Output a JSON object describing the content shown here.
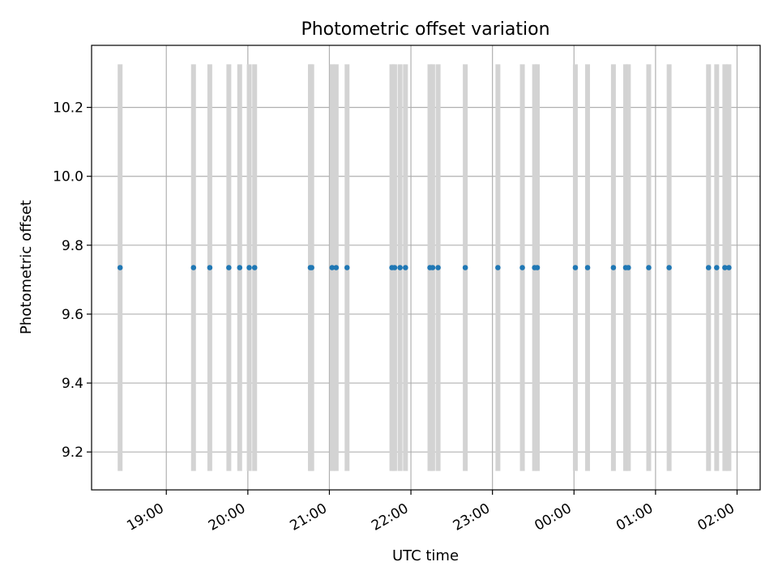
{
  "chart_data": {
    "type": "scatter",
    "title": "Photometric offset variation",
    "xlabel": "UTC time",
    "ylabel": "Photometric offset",
    "grid": true,
    "colors": {
      "point": "#1f77b4",
      "errorbar": "#d3d3d3"
    },
    "xlim": [
      "18:05",
      "02:17"
    ],
    "ylim": [
      9.09,
      10.38
    ],
    "x_ticks": [
      "19:00",
      "20:00",
      "21:00",
      "22:00",
      "23:00",
      "00:00",
      "01:00",
      "02:00"
    ],
    "y_ticks": [
      "9.2",
      "9.4",
      "9.6",
      "9.8",
      "10.0",
      "10.2"
    ],
    "error_range": [
      9.145,
      10.325
    ],
    "series": [
      {
        "x": [
          "18:26",
          "19:20",
          "19:32",
          "19:46",
          "19:54",
          "20:01",
          "20:05",
          "20:46",
          "20:47",
          "21:02",
          "21:05",
          "21:13",
          "21:46",
          "21:48",
          "21:52",
          "21:56",
          "22:14",
          "22:16",
          "22:20",
          "22:40",
          "23:04",
          "23:22",
          "23:31",
          "23:33",
          "24:01",
          "24:10",
          "24:29",
          "24:38",
          "24:40",
          "24:55",
          "25:10",
          "25:39",
          "25:45",
          "25:51",
          "25:54"
        ],
        "y": [
          9.735,
          9.735,
          9.735,
          9.735,
          9.735,
          9.735,
          9.735,
          9.735,
          9.735,
          9.735,
          9.735,
          9.735,
          9.735,
          9.735,
          9.735,
          9.735,
          9.735,
          9.735,
          9.735,
          9.735,
          9.735,
          9.735,
          9.735,
          9.735,
          9.735,
          9.735,
          9.735,
          9.735,
          9.735,
          9.735,
          9.735,
          9.735,
          9.735,
          9.735,
          9.735
        ]
      }
    ]
  }
}
